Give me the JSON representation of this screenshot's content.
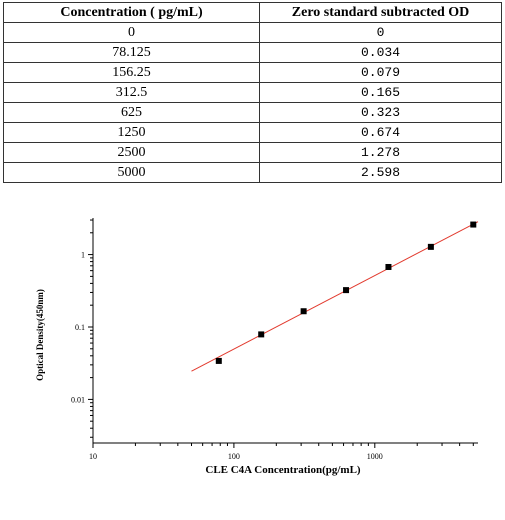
{
  "table": {
    "headers": [
      "Concentration ( pg/mL)",
      "Zero standard subtracted OD"
    ],
    "rows": [
      [
        "0",
        "0"
      ],
      [
        "78.125",
        "0.034"
      ],
      [
        "156.25",
        "0.079"
      ],
      [
        "312.5",
        "0.165"
      ],
      [
        "625",
        "0.323"
      ],
      [
        "1250",
        "0.674"
      ],
      [
        "2500",
        "1.278"
      ],
      [
        "5000",
        "2.598"
      ]
    ]
  },
  "chart_data": {
    "type": "scatter",
    "title": "",
    "xlabel": "CLE C4A Concentration(pg/mL)",
    "ylabel": "Optical Density(450nm)",
    "xscale": "log",
    "yscale": "log",
    "xlim": [
      10,
      5400
    ],
    "ylim": [
      0.0025,
      3.2
    ],
    "x_ticks": [
      10,
      100,
      1000
    ],
    "x_tick_labels": [
      "10",
      "100",
      "1000"
    ],
    "y_ticks": [
      0.01,
      0.1,
      1
    ],
    "y_tick_labels": [
      "0.01",
      "0.1",
      "1"
    ],
    "grid": false,
    "series": [
      {
        "kind": "points",
        "x": [
          78.125,
          156.25,
          312.5,
          625,
          1250,
          2500,
          5000
        ],
        "y": [
          0.034,
          0.079,
          0.165,
          0.323,
          0.674,
          1.278,
          2.598
        ],
        "color": "#000000"
      },
      {
        "kind": "fit-line",
        "x": [
          50,
          5400
        ],
        "y": [
          0.0245,
          2.85
        ],
        "color": "#e23a2e"
      }
    ]
  }
}
